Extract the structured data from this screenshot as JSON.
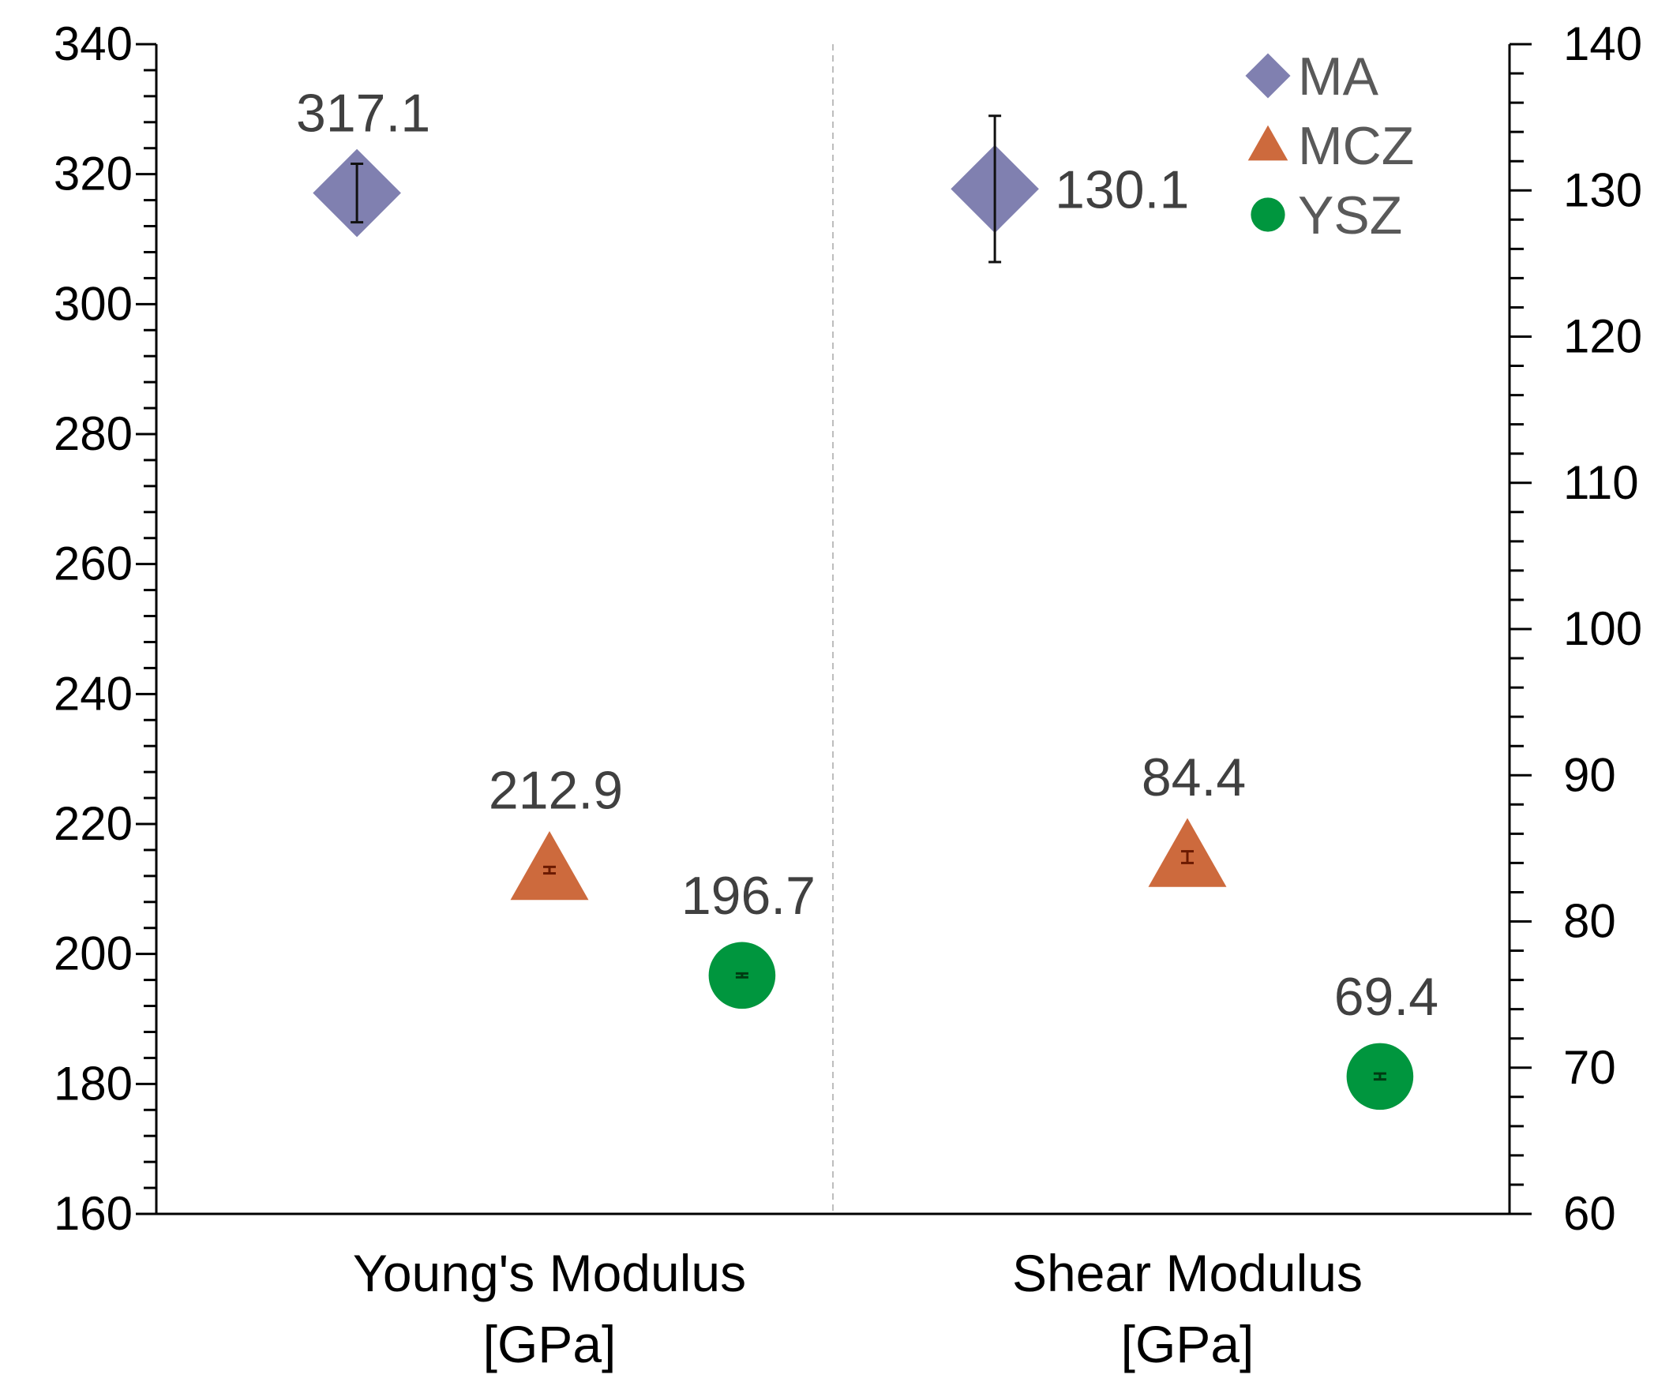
{
  "chart_data": {
    "type": "scatter",
    "title": "",
    "categories": [
      {
        "line1": "Young's Modulus",
        "line2": "[GPa]",
        "axis": "left"
      },
      {
        "line1": "Shear Modulus",
        "line2": "[GPa]",
        "axis": "right"
      }
    ],
    "left_axis": {
      "ylim": [
        160,
        340
      ],
      "major_step": 20,
      "minor_step": 4,
      "tick_labels": [
        "160",
        "180",
        "200",
        "220",
        "240",
        "260",
        "280",
        "300",
        "320",
        "340"
      ]
    },
    "right_axis": {
      "ylim": [
        60,
        140
      ],
      "major_step": 10,
      "minor_step": 2,
      "tick_labels": [
        "60",
        "70",
        "80",
        "90",
        "100",
        "110",
        "120",
        "130",
        "140"
      ]
    },
    "series": [
      {
        "name": "MA",
        "marker": "diamond",
        "color": "#8080B0",
        "points": [
          {
            "category": 0,
            "offset": -0.45,
            "value": 317.1,
            "error": 4.5,
            "label": "317.1"
          },
          {
            "category": 1,
            "offset": -0.45,
            "value": 130.1,
            "error": 5.0,
            "label": "130.1"
          }
        ]
      },
      {
        "name": "MCZ",
        "marker": "triangle",
        "color": "#CD6A3D",
        "points": [
          {
            "category": 0,
            "offset": 0.0,
            "value": 212.9,
            "error": 0.5,
            "label": "212.9"
          },
          {
            "category": 1,
            "offset": 0.0,
            "value": 84.4,
            "error": 0.4,
            "label": "84.4"
          }
        ]
      },
      {
        "name": "YSZ",
        "marker": "circle",
        "color": "#00963E",
        "points": [
          {
            "category": 0,
            "offset": 0.45,
            "value": 196.7,
            "error": 0.3,
            "label": "196.7"
          },
          {
            "category": 1,
            "offset": 0.45,
            "value": 69.4,
            "error": 0.2,
            "label": "69.4"
          }
        ]
      }
    ],
    "legend": {
      "position": "top-right",
      "entries": [
        "MA",
        "MCZ",
        "YSZ"
      ]
    },
    "divider": "dashed",
    "grid": false
  }
}
